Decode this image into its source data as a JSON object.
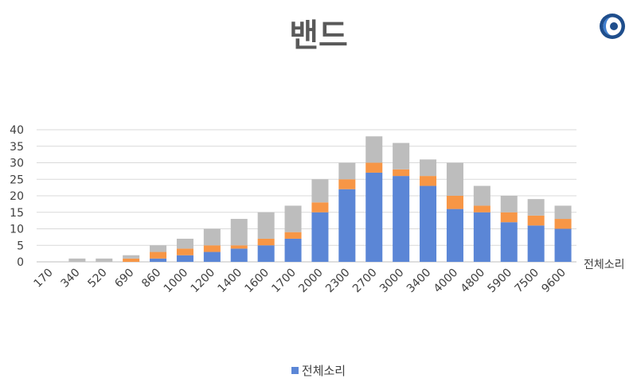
{
  "chart_data": {
    "type": "bar",
    "stacked": true,
    "title": "밴드",
    "xlabel": "전체소리",
    "ylabel": "",
    "ylim": [
      0,
      40
    ],
    "yticks": [
      0,
      5,
      10,
      15,
      20,
      25,
      30,
      35,
      40
    ],
    "grid": true,
    "legend_position": "bottom",
    "categories": [
      "170",
      "340",
      "520",
      "690",
      "860",
      "1000",
      "1200",
      "1400",
      "1600",
      "1700",
      "2000",
      "2300",
      "2700",
      "3000",
      "3400",
      "4000",
      "4800",
      "5900",
      "7500",
      "9600"
    ],
    "series": [
      {
        "name": "전체소리",
        "color": "#5B86D6",
        "values": [
          0,
          0,
          0,
          0,
          1,
          2,
          3,
          4,
          5,
          7,
          15,
          22,
          27,
          26,
          23,
          16,
          15,
          12,
          11,
          10
        ]
      },
      {
        "color": "#F79646",
        "values": [
          0,
          0,
          0,
          1,
          2,
          2,
          2,
          1,
          2,
          2,
          3,
          3,
          3,
          2,
          3,
          4,
          2,
          3,
          3,
          3
        ]
      },
      {
        "color": "#BDBDBD",
        "values": [
          0,
          1,
          1,
          1,
          2,
          3,
          5,
          8,
          8,
          8,
          7,
          5,
          8,
          8,
          5,
          10,
          6,
          5,
          5,
          4
        ]
      }
    ]
  }
}
